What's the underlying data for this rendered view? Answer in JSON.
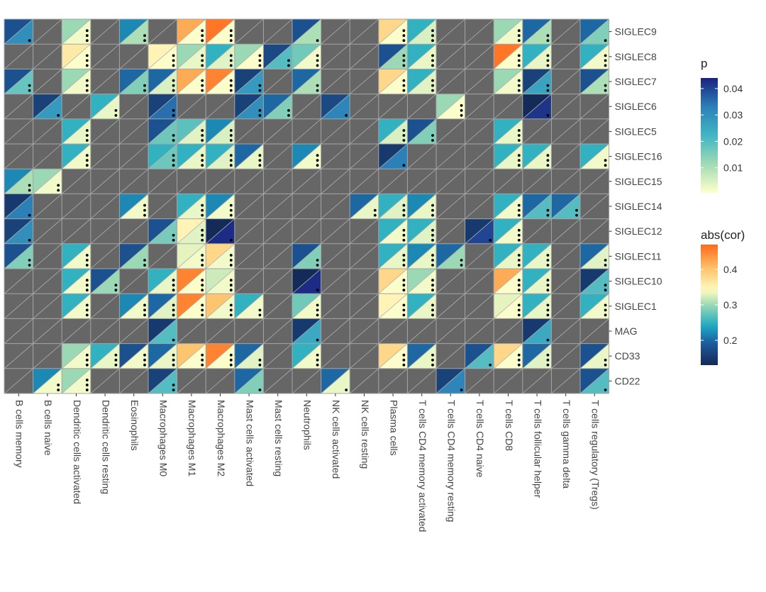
{
  "chart_data": {
    "type": "heatmap",
    "title": "",
    "xlabel": "",
    "ylabel": "",
    "columns": [
      "B cells memory",
      "B cells naive",
      "Dendritic cells activated",
      "Dendritic cells resting",
      "Eosinophils",
      "Macrophages M0",
      "Macrophages M1",
      "Macrophages M2",
      "Mast cells activated",
      "Mast cells resting",
      "Neutrophils",
      "NK cells activated",
      "NK cells resting",
      "Plasma cells",
      "T cells CD4 memory activated",
      "T cells CD4 memory resting",
      "T cells CD4 naive",
      "T cells CD8",
      "T cells follicular helper",
      "T cells gamma delta",
      "T cells regulatory (Tregs)"
    ],
    "rows": [
      "SIGLEC9",
      "SIGLEC8",
      "SIGLEC7",
      "SIGLEC6",
      "SIGLEC5",
      "SIGLEC16",
      "SIGLEC15",
      "SIGLEC14",
      "SIGLEC12",
      "SIGLEC11",
      "SIGLEC10",
      "SIGLEC1",
      "MAG",
      "CD33",
      "CD22"
    ],
    "cell_encoding": {
      "upper_left_triangle": "abs(cor)",
      "lower_right_triangle": "p",
      "dots": "significance stars",
      "missing_fill": "#666666"
    },
    "cells": [
      [
        "SIGLEC9",
        "B cells memory",
        0.18,
        0.03,
        1
      ],
      [
        "SIGLEC9",
        "Dendritic cells activated",
        0.3,
        0.002,
        3
      ],
      [
        "SIGLEC9",
        "Eosinophils",
        0.22,
        0.01,
        2
      ],
      [
        "SIGLEC9",
        "Macrophages M1",
        0.42,
        0.001,
        3
      ],
      [
        "SIGLEC9",
        "Macrophages M2",
        0.46,
        0.001,
        3
      ],
      [
        "SIGLEC9",
        "Neutrophils",
        0.18,
        0.01,
        1
      ],
      [
        "SIGLEC9",
        "Plasma cells",
        0.38,
        0.001,
        3
      ],
      [
        "SIGLEC9",
        "T cells CD4 memory activated",
        0.25,
        0.005,
        3
      ],
      [
        "SIGLEC9",
        "T cells CD8",
        0.3,
        0.002,
        3
      ],
      [
        "SIGLEC9",
        "T cells follicular helper",
        0.2,
        0.01,
        2
      ],
      [
        "SIGLEC9",
        "T cells regulatory (Tregs)",
        0.2,
        0.015,
        1
      ],
      [
        "SIGLEC8",
        "Dendritic cells activated",
        0.36,
        0.001,
        3
      ],
      [
        "SIGLEC8",
        "Macrophages M0",
        0.35,
        0.001,
        3
      ],
      [
        "SIGLEC8",
        "Macrophages M1",
        0.3,
        0.003,
        3
      ],
      [
        "SIGLEC8",
        "Macrophages M2",
        0.25,
        0.004,
        3
      ],
      [
        "SIGLEC8",
        "Mast cells activated",
        0.3,
        0.001,
        3
      ],
      [
        "SIGLEC8",
        "Mast cells resting",
        0.17,
        0.02,
        2
      ],
      [
        "SIGLEC8",
        "Neutrophils",
        0.28,
        0.002,
        3
      ],
      [
        "SIGLEC8",
        "Plasma cells",
        0.18,
        0.012,
        3
      ],
      [
        "SIGLEC8",
        "T cells CD4 memory activated",
        0.25,
        0.003,
        3
      ],
      [
        "SIGLEC8",
        "T cells CD8",
        0.46,
        0.001,
        3
      ],
      [
        "SIGLEC8",
        "T cells follicular helper",
        0.25,
        0.003,
        3
      ],
      [
        "SIGLEC8",
        "T cells regulatory (Tregs)",
        0.25,
        0.002,
        3
      ],
      [
        "SIGLEC7",
        "B cells memory",
        0.18,
        0.018,
        2
      ],
      [
        "SIGLEC7",
        "Dendritic cells activated",
        0.3,
        0.002,
        3
      ],
      [
        "SIGLEC7",
        "Eosinophils",
        0.2,
        0.015,
        2
      ],
      [
        "SIGLEC7",
        "Macrophages M0",
        0.2,
        0.005,
        3
      ],
      [
        "SIGLEC7",
        "Macrophages M1",
        0.42,
        0.001,
        3
      ],
      [
        "SIGLEC7",
        "Macrophages M2",
        0.45,
        0.001,
        3
      ],
      [
        "SIGLEC7",
        "Mast cells activated",
        0.16,
        0.028,
        2
      ],
      [
        "SIGLEC7",
        "Neutrophils",
        0.2,
        0.01,
        2
      ],
      [
        "SIGLEC7",
        "Plasma cells",
        0.38,
        0.001,
        3
      ],
      [
        "SIGLEC7",
        "T cells CD4 memory activated",
        0.25,
        0.004,
        3
      ],
      [
        "SIGLEC7",
        "T cells CD8",
        0.3,
        0.002,
        3
      ],
      [
        "SIGLEC7",
        "T cells follicular helper",
        0.16,
        0.026,
        2
      ],
      [
        "SIGLEC7",
        "T cells regulatory (Tregs)",
        0.18,
        0.01,
        2
      ],
      [
        "SIGLEC6",
        "B cells naive",
        0.16,
        0.028,
        1
      ],
      [
        "SIGLEC6",
        "Dendritic cells resting",
        0.25,
        0.003,
        2
      ],
      [
        "SIGLEC6",
        "Macrophages M0",
        0.16,
        0.035,
        2
      ],
      [
        "SIGLEC6",
        "Mast cells activated",
        0.16,
        0.03,
        2
      ],
      [
        "SIGLEC6",
        "Mast cells resting",
        0.2,
        0.015,
        2
      ],
      [
        "SIGLEC6",
        "NK cells activated",
        0.17,
        0.032,
        1
      ],
      [
        "SIGLEC6",
        "T cells CD4 memory resting",
        0.3,
        0.001,
        3
      ],
      [
        "SIGLEC6",
        "T cells follicular helper",
        0.13,
        0.042,
        1
      ],
      [
        "SIGLEC5",
        "Dendritic cells activated",
        0.25,
        0.003,
        3
      ],
      [
        "SIGLEC5",
        "Macrophages M0",
        0.18,
        0.017,
        2
      ],
      [
        "SIGLEC5",
        "Macrophages M1",
        0.27,
        0.004,
        3
      ],
      [
        "SIGLEC5",
        "Macrophages M2",
        0.22,
        0.005,
        3
      ],
      [
        "SIGLEC5",
        "Plasma cells",
        0.25,
        0.005,
        3
      ],
      [
        "SIGLEC5",
        "T cells CD4 memory activated",
        0.18,
        0.015,
        2
      ],
      [
        "SIGLEC5",
        "T cells CD8",
        0.25,
        0.003,
        3
      ],
      [
        "SIGLEC16",
        "Dendritic cells activated",
        0.25,
        0.002,
        3
      ],
      [
        "SIGLEC16",
        "Macrophages M0",
        0.25,
        0.017,
        3
      ],
      [
        "SIGLEC16",
        "Macrophages M1",
        0.25,
        0.003,
        3
      ],
      [
        "SIGLEC16",
        "Macrophages M2",
        0.25,
        0.004,
        3
      ],
      [
        "SIGLEC16",
        "Mast cells activated",
        0.2,
        0.003,
        3
      ],
      [
        "SIGLEC16",
        "Neutrophils",
        0.22,
        0.002,
        3
      ],
      [
        "SIGLEC16",
        "Plasma cells",
        0.15,
        0.033,
        1
      ],
      [
        "SIGLEC16",
        "T cells CD8",
        0.25,
        0.003,
        3
      ],
      [
        "SIGLEC16",
        "T cells follicular helper",
        0.25,
        0.003,
        3
      ],
      [
        "SIGLEC16",
        "T cells regulatory (Tregs)",
        0.25,
        0.002,
        2
      ],
      [
        "SIGLEC15",
        "B cells memory",
        0.22,
        0.01,
        2
      ],
      [
        "SIGLEC15",
        "B cells naive",
        0.3,
        0.002,
        2
      ],
      [
        "SIGLEC14",
        "B cells memory",
        0.15,
        0.033,
        1
      ],
      [
        "SIGLEC14",
        "Eosinophils",
        0.22,
        0.002,
        3
      ],
      [
        "SIGLEC14",
        "Macrophages M1",
        0.25,
        0.003,
        3
      ],
      [
        "SIGLEC14",
        "Macrophages M2",
        0.22,
        0.002,
        3
      ],
      [
        "SIGLEC14",
        "NK cells resting",
        0.2,
        0.003,
        2
      ],
      [
        "SIGLEC14",
        "Plasma cells",
        0.25,
        0.004,
        3
      ],
      [
        "SIGLEC14",
        "T cells CD4 memory activated",
        0.22,
        0.003,
        3
      ],
      [
        "SIGLEC14",
        "T cells CD8",
        0.25,
        0.002,
        3
      ],
      [
        "SIGLEC14",
        "T cells follicular helper",
        0.2,
        0.02,
        2
      ],
      [
        "SIGLEC14",
        "T cells gamma delta",
        0.2,
        0.02,
        2
      ],
      [
        "SIGLEC12",
        "B cells memory",
        0.16,
        0.03,
        1
      ],
      [
        "SIGLEC12",
        "Macrophages M0",
        0.18,
        0.016,
        2
      ],
      [
        "SIGLEC12",
        "Macrophages M1",
        0.35,
        0.004,
        3
      ],
      [
        "SIGLEC12",
        "Macrophages M2",
        0.13,
        0.043,
        1
      ],
      [
        "SIGLEC12",
        "Plasma cells",
        0.25,
        0.002,
        3
      ],
      [
        "SIGLEC12",
        "T cells CD4 memory activated",
        0.25,
        0.004,
        3
      ],
      [
        "SIGLEC12",
        "T cells CD4 naive",
        0.15,
        0.04,
        1
      ],
      [
        "SIGLEC12",
        "T cells CD8",
        0.25,
        0.002,
        3
      ],
      [
        "SIGLEC11",
        "B cells memory",
        0.18,
        0.015,
        2
      ],
      [
        "SIGLEC11",
        "Dendritic cells activated",
        0.25,
        0.002,
        3
      ],
      [
        "SIGLEC11",
        "Eosinophils",
        0.18,
        0.012,
        2
      ],
      [
        "SIGLEC11",
        "Macrophages M1",
        0.33,
        0.002,
        3
      ],
      [
        "SIGLEC11",
        "Macrophages M2",
        0.38,
        0.002,
        3
      ],
      [
        "SIGLEC11",
        "Neutrophils",
        0.18,
        0.015,
        2
      ],
      [
        "SIGLEC11",
        "Plasma cells",
        0.25,
        0.003,
        3
      ],
      [
        "SIGLEC11",
        "T cells CD4 memory activated",
        0.22,
        0.003,
        3
      ],
      [
        "SIGLEC11",
        "T cells CD4 memory resting",
        0.2,
        0.012,
        2
      ],
      [
        "SIGLEC11",
        "T cells CD8",
        0.25,
        0.003,
        3
      ],
      [
        "SIGLEC11",
        "T cells follicular helper",
        0.25,
        0.003,
        3
      ],
      [
        "SIGLEC11",
        "T cells regulatory (Tregs)",
        0.2,
        0.004,
        2
      ],
      [
        "SIGLEC10",
        "Dendritic cells activated",
        0.25,
        0.002,
        3
      ],
      [
        "SIGLEC10",
        "Dendritic cells resting",
        0.18,
        0.012,
        2
      ],
      [
        "SIGLEC10",
        "Macrophages M0",
        0.25,
        0.003,
        3
      ],
      [
        "SIGLEC10",
        "Macrophages M1",
        0.45,
        0.001,
        3
      ],
      [
        "SIGLEC10",
        "Macrophages M2",
        0.32,
        0.002,
        3
      ],
      [
        "SIGLEC10",
        "Neutrophils",
        0.13,
        0.043,
        1
      ],
      [
        "SIGLEC10",
        "Plasma cells",
        0.38,
        0.001,
        3
      ],
      [
        "SIGLEC10",
        "T cells CD4 memory activated",
        0.3,
        0.002,
        3
      ],
      [
        "SIGLEC10",
        "T cells CD8",
        0.42,
        0.001,
        3
      ],
      [
        "SIGLEC10",
        "T cells follicular helper",
        0.25,
        0.003,
        3
      ],
      [
        "SIGLEC10",
        "T cells regulatory (Tregs)",
        0.15,
        0.02,
        2
      ],
      [
        "SIGLEC1",
        "Dendritic cells activated",
        0.25,
        0.002,
        3
      ],
      [
        "SIGLEC1",
        "Eosinophils",
        0.22,
        0.002,
        3
      ],
      [
        "SIGLEC1",
        "Macrophages M0",
        0.2,
        0.004,
        3
      ],
      [
        "SIGLEC1",
        "Macrophages M1",
        0.45,
        0.001,
        3
      ],
      [
        "SIGLEC1",
        "Macrophages M2",
        0.4,
        0.002,
        3
      ],
      [
        "SIGLEC1",
        "Mast cells activated",
        0.25,
        0.002,
        2
      ],
      [
        "SIGLEC1",
        "Neutrophils",
        0.28,
        0.002,
        3
      ],
      [
        "SIGLEC1",
        "Plasma cells",
        0.35,
        0.001,
        3
      ],
      [
        "SIGLEC1",
        "T cells CD4 memory activated",
        0.25,
        0.003,
        3
      ],
      [
        "SIGLEC1",
        "T cells CD8",
        0.33,
        0.001,
        3
      ],
      [
        "SIGLEC1",
        "T cells follicular helper",
        0.25,
        0.003,
        3
      ],
      [
        "SIGLEC1",
        "T cells regulatory (Tregs)",
        0.25,
        0.002,
        3
      ],
      [
        "MAG",
        "Macrophages M0",
        0.15,
        0.02,
        1
      ],
      [
        "MAG",
        "Neutrophils",
        0.15,
        0.025,
        1
      ],
      [
        "MAG",
        "T cells follicular helper",
        0.15,
        0.025,
        1
      ],
      [
        "CD33",
        "Dendritic cells activated",
        0.3,
        0.002,
        3
      ],
      [
        "CD33",
        "Dendritic cells resting",
        0.25,
        0.003,
        3
      ],
      [
        "CD33",
        "Eosinophils",
        0.18,
        0.002,
        3
      ],
      [
        "CD33",
        "Macrophages M0",
        0.2,
        0.003,
        3
      ],
      [
        "CD33",
        "Macrophages M1",
        0.4,
        0.001,
        3
      ],
      [
        "CD33",
        "Macrophages M2",
        0.45,
        0.001,
        3
      ],
      [
        "CD33",
        "Mast cells activated",
        0.2,
        0.004,
        2
      ],
      [
        "CD33",
        "Neutrophils",
        0.25,
        0.002,
        3
      ],
      [
        "CD33",
        "Plasma cells",
        0.38,
        0.001,
        3
      ],
      [
        "CD33",
        "T cells CD4 memory activated",
        0.2,
        0.003,
        3
      ],
      [
        "CD33",
        "T cells CD4 naive",
        0.18,
        0.02,
        1
      ],
      [
        "CD33",
        "T cells CD8",
        0.38,
        0.001,
        3
      ],
      [
        "CD33",
        "T cells follicular helper",
        0.2,
        0.004,
        3
      ],
      [
        "CD33",
        "T cells regulatory (Tregs)",
        0.18,
        0.003,
        2
      ],
      [
        "CD22",
        "B cells naive",
        0.22,
        0.002,
        2
      ],
      [
        "CD22",
        "Dendritic cells activated",
        0.3,
        0.002,
        3
      ],
      [
        "CD22",
        "Macrophages M0",
        0.16,
        0.02,
        2
      ],
      [
        "CD22",
        "Mast cells activated",
        0.2,
        0.015,
        1
      ],
      [
        "CD22",
        "NK cells activated",
        0.2,
        0.003,
        1
      ],
      [
        "CD22",
        "T cells CD4 memory resting",
        0.16,
        0.032,
        1
      ],
      [
        "CD22",
        "T cells regulatory (Tregs)",
        0.18,
        0.02,
        1
      ]
    ],
    "legend_p": {
      "title": "p",
      "min": 0.0005,
      "max": 0.044,
      "ticks": [
        "0.04",
        "0.03",
        "0.02",
        "0.01"
      ],
      "tick_values": [
        0.04,
        0.03,
        0.02,
        0.01
      ]
    },
    "legend_cor": {
      "title": "abs(cor)",
      "min": 0.13,
      "max": 0.47,
      "ticks": [
        "0.4",
        "0.3",
        "0.2"
      ],
      "tick_values": [
        0.4,
        0.3,
        0.2
      ]
    },
    "grid": true
  }
}
